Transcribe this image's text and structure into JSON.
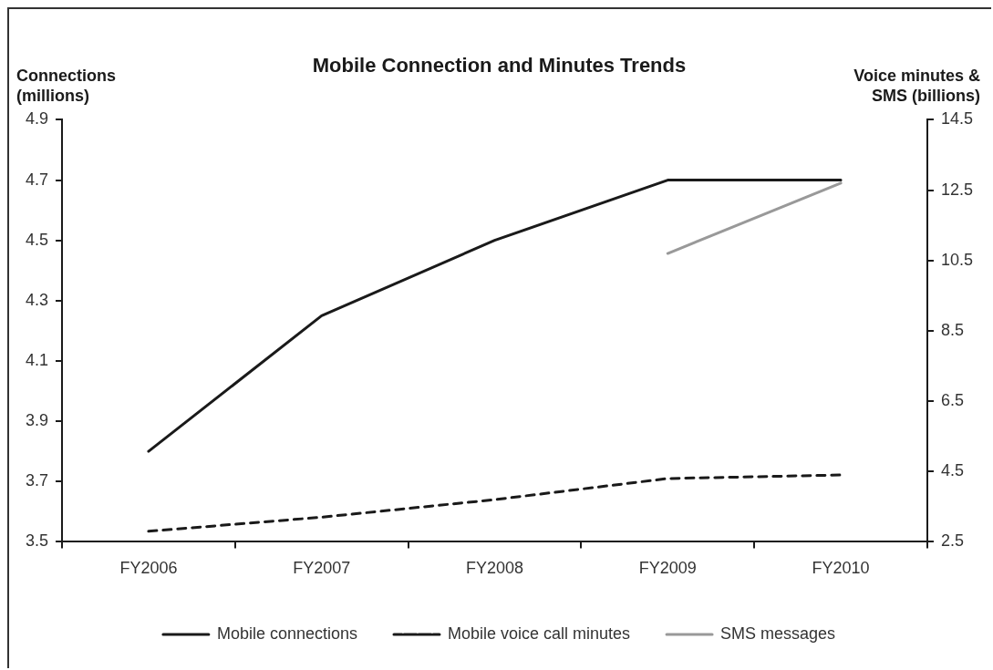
{
  "chart_data": {
    "type": "line",
    "title": "Mobile Connection and Minutes Trends",
    "ylabel": "Connections (millions)",
    "y2label": "Voice minutes & SMS (billions)",
    "categories": [
      "FY2006",
      "FY2007",
      "FY2008",
      "FY2009",
      "FY2010"
    ],
    "series": [
      {
        "name": "Mobile connections",
        "color": "#1a1a1a",
        "values": [
          3.8,
          4.25,
          4.5,
          4.7,
          4.7
        ]
      },
      {
        "name": "Mobile voice call minutes",
        "color": "#1a1a1a",
        "line_style": "dashed",
        "axis": "y2",
        "values": [
          2.8,
          3.2,
          3.7,
          4.3,
          4.4
        ]
      },
      {
        "name": "SMS messages",
        "color": "#999999",
        "axis": "y2",
        "values": [
          null,
          null,
          null,
          10.7,
          12.7
        ]
      }
    ],
    "ylim": [
      3.5,
      4.9
    ],
    "yticks": [
      3.5,
      3.7,
      3.9,
      4.1,
      4.3,
      4.5,
      4.7,
      4.9
    ],
    "y2lim": [
      2.5,
      14.5
    ],
    "y2ticks": [
      2.5,
      4.5,
      6.5,
      8.5,
      10.5,
      12.5,
      14.5
    ],
    "grid": false,
    "legend": "bottom",
    "marker": "none",
    "line_style": "solid"
  }
}
